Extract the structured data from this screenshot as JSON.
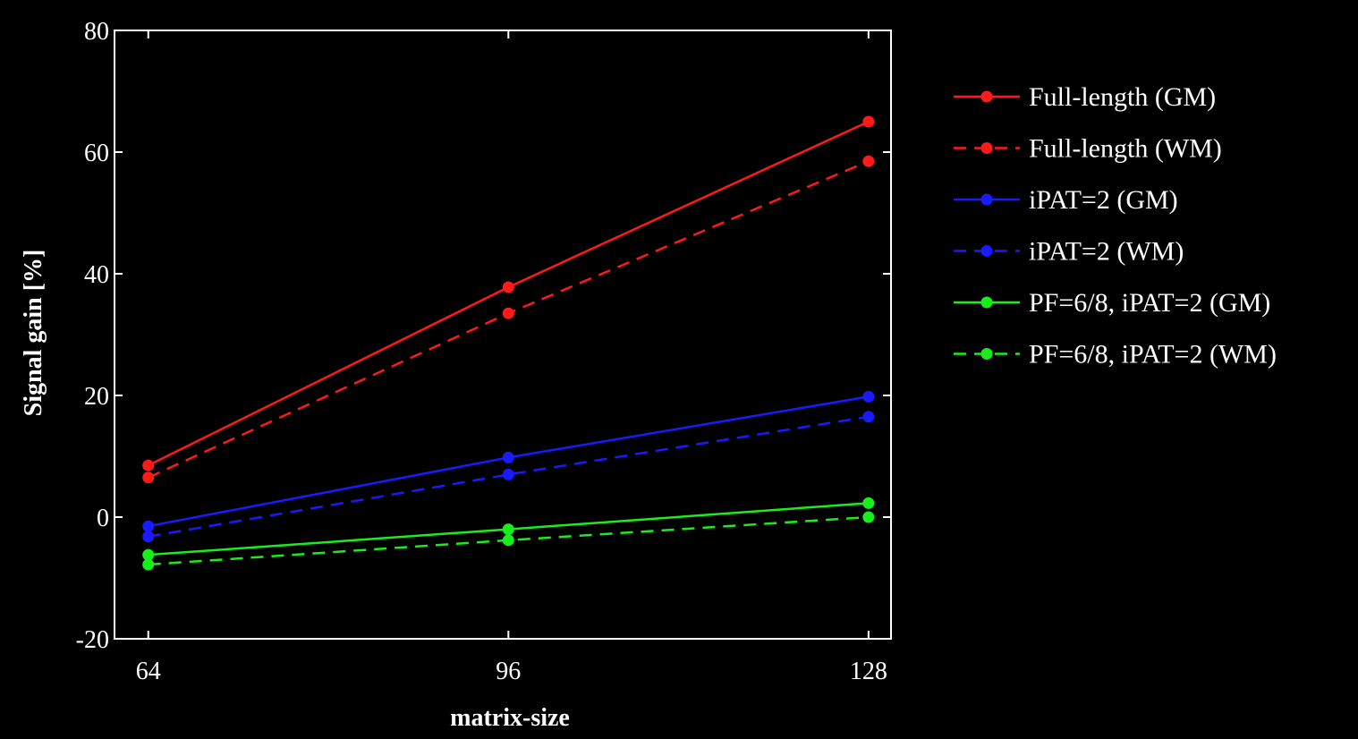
{
  "chart_data": {
    "type": "line",
    "xlabel": "matrix-size",
    "ylabel": "Signal gain [%]",
    "x": [
      64,
      96,
      128
    ],
    "x_ticks": [
      "64",
      "96",
      "128"
    ],
    "xlim": [
      61,
      130
    ],
    "ylim": [
      -20,
      80
    ],
    "y_ticks": [
      -20,
      0,
      20,
      40,
      60,
      80
    ],
    "grid": false,
    "background": "#000000",
    "axis_color": "#ffffff",
    "legend_position": "right",
    "series": [
      {
        "name": "Full-length (GM)",
        "values": [
          8.5,
          37.8,
          65.0
        ],
        "color": "#ff1a1a",
        "dash": "solid"
      },
      {
        "name": "Full-length (WM)",
        "values": [
          6.5,
          33.5,
          58.5
        ],
        "color": "#ff1a1a",
        "dash": "dashed"
      },
      {
        "name": "iPAT=2 (GM)",
        "values": [
          -1.5,
          9.8,
          19.8
        ],
        "color": "#1a1aff",
        "dash": "solid"
      },
      {
        "name": "iPAT=2 (WM)",
        "values": [
          -3.2,
          7.0,
          16.5
        ],
        "color": "#1a1aff",
        "dash": "dashed"
      },
      {
        "name": "PF=6/8, iPAT=2 (GM)",
        "values": [
          -6.2,
          -2.0,
          2.3
        ],
        "color": "#1aee1a",
        "dash": "solid"
      },
      {
        "name": "PF=6/8, iPAT=2 (WM)",
        "values": [
          -7.8,
          -3.8,
          0.0
        ],
        "color": "#1aee1a",
        "dash": "dashed"
      }
    ]
  }
}
